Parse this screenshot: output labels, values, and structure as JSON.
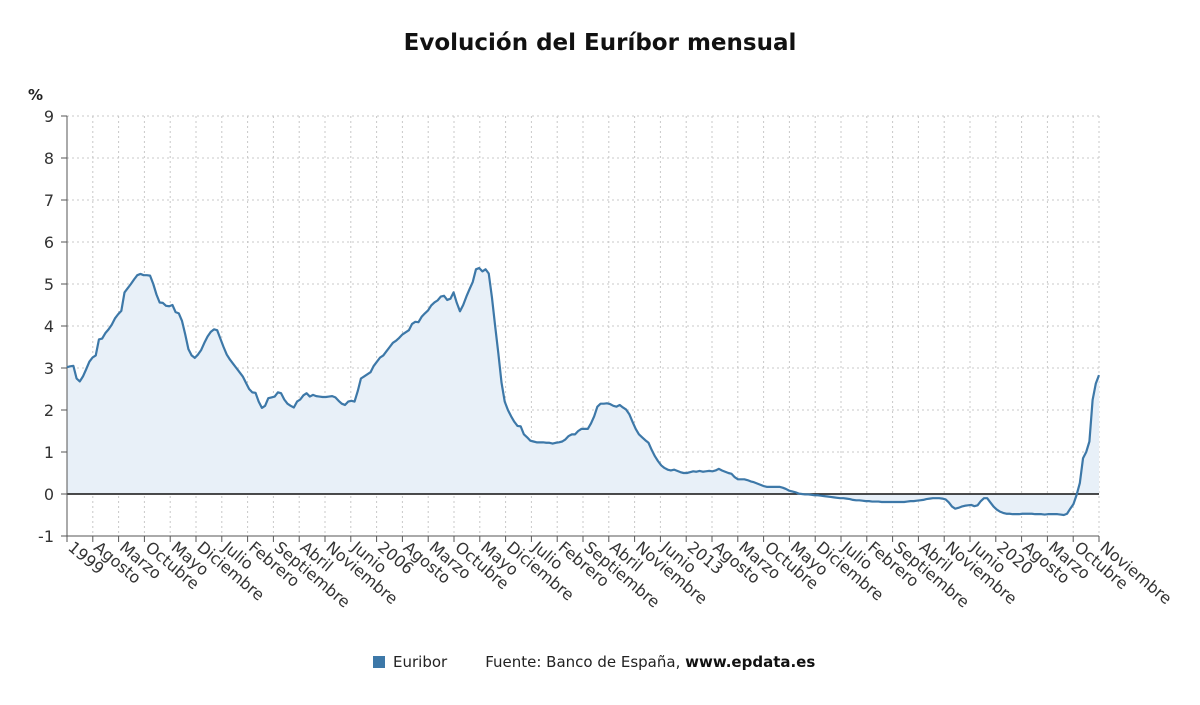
{
  "page": {
    "title": "Evolución del Euríbor mensual",
    "legend_label": "Euribor",
    "source_text": "Fuente: Banco de España, ",
    "source_url": "www.epdata.es"
  },
  "chart_data": {
    "type": "area",
    "title": "Evolución del Euríbor mensual",
    "xlabel": "",
    "ylabel": "%",
    "ylim": [
      -1,
      9
    ],
    "yticks": [
      -1,
      0,
      1,
      2,
      3,
      4,
      5,
      6,
      7,
      8,
      9
    ],
    "grid": true,
    "grid_style": "dotted",
    "legend_position": "bottom",
    "colors": {
      "line": "#3d78a8",
      "fill": "#e8f0f8",
      "zero_line": "#111111",
      "grid": "#c8c8c8"
    },
    "x_start": "1999-01",
    "x_end": "2022-11",
    "xtick_labels": [
      "1999",
      "Agosto",
      "Marzo",
      "Octubre",
      "Mayo",
      "Diciembre",
      "Julio",
      "Febrero",
      "Septiembre",
      "Abril",
      "Noviembre",
      "Junio",
      "2006",
      "Agosto",
      "Marzo",
      "Octubre",
      "Mayo",
      "Diciembre",
      "Julio",
      "Febrero",
      "Septiembre",
      "Abril",
      "Noviembre",
      "Junio",
      "2013",
      "Agosto",
      "Marzo",
      "Octubre",
      "Mayo",
      "Diciembre",
      "Julio",
      "Febrero",
      "Septiembre",
      "Abril",
      "Noviembre",
      "Junio",
      "2020",
      "Agosto",
      "Marzo",
      "Octubre",
      "Noviembre"
    ],
    "series": [
      {
        "name": "Euribor",
        "values": [
          3.02,
          3.04,
          3.05,
          2.75,
          2.68,
          2.8,
          2.97,
          3.15,
          3.25,
          3.3,
          3.68,
          3.7,
          3.83,
          3.92,
          4.03,
          4.18,
          4.28,
          4.36,
          4.8,
          4.9,
          5.0,
          5.11,
          5.21,
          5.24,
          5.21,
          5.21,
          5.2,
          5.0,
          4.75,
          4.56,
          4.55,
          4.48,
          4.47,
          4.5,
          4.33,
          4.3,
          4.12,
          3.8,
          3.45,
          3.3,
          3.24,
          3.32,
          3.43,
          3.6,
          3.75,
          3.86,
          3.92,
          3.9,
          3.7,
          3.5,
          3.32,
          3.2,
          3.1,
          3.0,
          2.9,
          2.8,
          2.65,
          2.5,
          2.42,
          2.41,
          2.2,
          2.05,
          2.1,
          2.28,
          2.3,
          2.32,
          2.42,
          2.4,
          2.25,
          2.15,
          2.1,
          2.06,
          2.2,
          2.25,
          2.35,
          2.4,
          2.32,
          2.36,
          2.33,
          2.32,
          2.31,
          2.31,
          2.32,
          2.33,
          2.3,
          2.22,
          2.15,
          2.12,
          2.2,
          2.22,
          2.2,
          2.45,
          2.75,
          2.8,
          2.85,
          2.9,
          3.05,
          3.15,
          3.25,
          3.3,
          3.4,
          3.5,
          3.6,
          3.65,
          3.72,
          3.8,
          3.85,
          3.9,
          4.05,
          4.1,
          4.09,
          4.22,
          4.3,
          4.37,
          4.49,
          4.56,
          4.61,
          4.7,
          4.72,
          4.62,
          4.65,
          4.8,
          4.55,
          4.35,
          4.5,
          4.7,
          4.88,
          5.05,
          5.35,
          5.38,
          5.3,
          5.35,
          5.25,
          4.68,
          4.0,
          3.35,
          2.65,
          2.2,
          2.0,
          1.85,
          1.72,
          1.62,
          1.61,
          1.42,
          1.35,
          1.27,
          1.25,
          1.23,
          1.23,
          1.23,
          1.22,
          1.22,
          1.2,
          1.22,
          1.23,
          1.25,
          1.3,
          1.38,
          1.42,
          1.42,
          1.5,
          1.55,
          1.55,
          1.55,
          1.68,
          1.85,
          2.08,
          2.15,
          2.15,
          2.16,
          2.14,
          2.1,
          2.08,
          2.12,
          2.06,
          2.01,
          1.9,
          1.72,
          1.55,
          1.42,
          1.35,
          1.28,
          1.22,
          1.05,
          0.9,
          0.78,
          0.68,
          0.62,
          0.58,
          0.56,
          0.58,
          0.55,
          0.52,
          0.5,
          0.5,
          0.52,
          0.54,
          0.53,
          0.55,
          0.53,
          0.54,
          0.55,
          0.54,
          0.56,
          0.6,
          0.56,
          0.53,
          0.5,
          0.48,
          0.4,
          0.35,
          0.35,
          0.35,
          0.33,
          0.3,
          0.28,
          0.25,
          0.22,
          0.19,
          0.17,
          0.17,
          0.17,
          0.17,
          0.17,
          0.15,
          0.12,
          0.08,
          0.06,
          0.04,
          0.01,
          0.0,
          -0.01,
          -0.01,
          -0.02,
          -0.03,
          -0.03,
          -0.04,
          -0.05,
          -0.06,
          -0.07,
          -0.08,
          -0.09,
          -0.1,
          -0.1,
          -0.11,
          -0.12,
          -0.14,
          -0.15,
          -0.15,
          -0.16,
          -0.17,
          -0.17,
          -0.18,
          -0.18,
          -0.18,
          -0.19,
          -0.19,
          -0.19,
          -0.19,
          -0.19,
          -0.19,
          -0.19,
          -0.19,
          -0.18,
          -0.17,
          -0.17,
          -0.16,
          -0.15,
          -0.14,
          -0.12,
          -0.11,
          -0.1,
          -0.1,
          -0.1,
          -0.11,
          -0.13,
          -0.2,
          -0.3,
          -0.35,
          -0.33,
          -0.3,
          -0.28,
          -0.27,
          -0.26,
          -0.29,
          -0.27,
          -0.17,
          -0.1,
          -0.1,
          -0.2,
          -0.3,
          -0.37,
          -0.42,
          -0.45,
          -0.47,
          -0.47,
          -0.48,
          -0.48,
          -0.48,
          -0.47,
          -0.47,
          -0.47,
          -0.47,
          -0.48,
          -0.48,
          -0.48,
          -0.49,
          -0.48,
          -0.48,
          -0.48,
          -0.48,
          -0.49,
          -0.5,
          -0.47,
          -0.35,
          -0.24,
          -0.02,
          0.26,
          0.85,
          1.0,
          1.25,
          2.24,
          2.63,
          2.83
        ]
      }
    ]
  }
}
